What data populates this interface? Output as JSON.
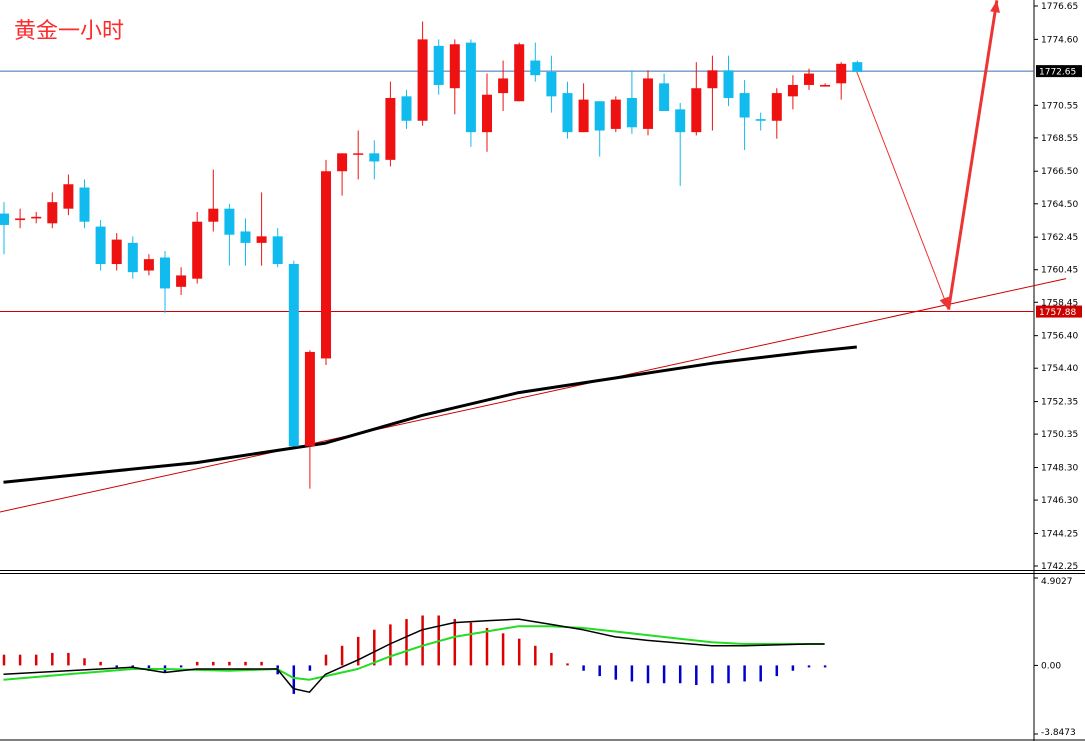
{
  "title": "黄金一小时",
  "colors": {
    "bull": "#ee1111",
    "bear": "#11bbee",
    "ma": "#000000",
    "trendline": "#cc0000",
    "forecast": "#ee3333",
    "price_line_current": "#3b6fb5",
    "price_line_support": "#cc0000",
    "macd_pos": "#dd0000",
    "macd_neg": "#0000cc",
    "macd_line": "#000000",
    "signal_line": "#22dd22"
  },
  "chart_data": [
    {
      "type": "candlestick",
      "title": "",
      "ylim": [
        1742.25,
        1776.65
      ],
      "price_ticks": [
        "1776.65",
        "1774.60",
        "1772.65",
        "1770.55",
        "1768.55",
        "1766.50",
        "1764.50",
        "1762.45",
        "1760.45",
        "1758.45",
        "1757.88",
        "1756.40",
        "1754.40",
        "1752.35",
        "1750.35",
        "1748.30",
        "1746.30",
        "1744.25",
        "1742.25"
      ],
      "current_price": "1772.65",
      "support_price": "1757.88",
      "candles": [
        [
          1763.9,
          1764.6,
          1761.4,
          1763.2
        ],
        [
          1763.5,
          1764.2,
          1763.0,
          1763.6
        ],
        [
          1763.6,
          1764.0,
          1763.3,
          1763.7
        ],
        [
          1763.3,
          1765.2,
          1763.0,
          1764.6
        ],
        [
          1764.2,
          1766.3,
          1763.8,
          1765.7
        ],
        [
          1765.5,
          1766.0,
          1763.0,
          1763.4
        ],
        [
          1763.1,
          1763.5,
          1760.4,
          1760.8
        ],
        [
          1760.8,
          1762.7,
          1760.4,
          1762.3
        ],
        [
          1762.1,
          1762.5,
          1759.9,
          1760.3
        ],
        [
          1760.4,
          1761.4,
          1760.1,
          1761.1
        ],
        [
          1761.2,
          1761.6,
          1757.8,
          1759.3
        ],
        [
          1759.4,
          1760.6,
          1758.9,
          1760.1
        ],
        [
          1759.9,
          1764.0,
          1759.6,
          1763.4
        ],
        [
          1763.4,
          1766.6,
          1762.8,
          1764.2
        ],
        [
          1764.2,
          1764.5,
          1760.7,
          1762.6
        ],
        [
          1762.8,
          1763.6,
          1760.7,
          1762.1
        ],
        [
          1762.1,
          1765.2,
          1760.7,
          1762.5
        ],
        [
          1762.5,
          1763.0,
          1760.6,
          1760.8
        ],
        [
          1760.8,
          1761.0,
          1749.6,
          1749.6
        ],
        [
          1749.6,
          1755.5,
          1747.0,
          1755.4
        ],
        [
          1755.0,
          1767.2,
          1754.6,
          1766.5
        ],
        [
          1766.5,
          1767.6,
          1765.0,
          1767.6
        ],
        [
          1767.6,
          1769.0,
          1766.0,
          1767.6
        ],
        [
          1767.6,
          1768.4,
          1766.0,
          1767.1
        ],
        [
          1767.2,
          1772.0,
          1766.8,
          1771.0
        ],
        [
          1771.1,
          1771.5,
          1769.1,
          1769.6
        ],
        [
          1769.6,
          1775.7,
          1769.3,
          1774.6
        ],
        [
          1774.2,
          1774.6,
          1771.2,
          1771.8
        ],
        [
          1771.6,
          1774.6,
          1770.0,
          1774.3
        ],
        [
          1774.4,
          1774.6,
          1768.0,
          1768.9
        ],
        [
          1768.9,
          1772.5,
          1767.7,
          1771.2
        ],
        [
          1771.3,
          1773.3,
          1770.2,
          1772.2
        ],
        [
          1770.8,
          1774.4,
          1770.8,
          1774.3
        ],
        [
          1773.3,
          1774.4,
          1772.0,
          1772.4
        ],
        [
          1772.6,
          1773.6,
          1770.1,
          1771.1
        ],
        [
          1771.3,
          1772.0,
          1768.5,
          1768.9
        ],
        [
          1768.9,
          1771.9,
          1768.9,
          1770.9
        ],
        [
          1770.8,
          1770.8,
          1767.4,
          1769.0
        ],
        [
          1769.1,
          1771.1,
          1768.9,
          1770.9
        ],
        [
          1771.0,
          1772.7,
          1768.8,
          1769.2
        ],
        [
          1769.1,
          1772.7,
          1768.7,
          1772.2
        ],
        [
          1771.9,
          1772.5,
          1770.2,
          1770.2
        ],
        [
          1770.3,
          1770.7,
          1765.6,
          1768.9
        ],
        [
          1768.9,
          1773.2,
          1768.7,
          1771.6
        ],
        [
          1771.6,
          1773.6,
          1769.0,
          1772.7
        ],
        [
          1772.7,
          1773.6,
          1770.5,
          1771.0
        ],
        [
          1771.3,
          1772.1,
          1767.8,
          1769.8
        ],
        [
          1769.7,
          1770.1,
          1769.0,
          1769.6
        ],
        [
          1769.6,
          1771.6,
          1768.5,
          1771.3
        ],
        [
          1771.1,
          1772.4,
          1770.3,
          1771.8
        ],
        [
          1771.8,
          1772.8,
          1771.5,
          1772.5
        ],
        [
          1771.7,
          1771.9,
          1771.7,
          1771.8
        ],
        [
          1771.9,
          1773.2,
          1770.9,
          1773.1
        ],
        [
          1773.2,
          1773.3,
          1772.6,
          1772.6
        ]
      ],
      "ma": [
        [
          0,
          1747.4
        ],
        [
          6,
          1748.0
        ],
        [
          12,
          1748.6
        ],
        [
          18,
          1749.5
        ],
        [
          20,
          1749.8
        ],
        [
          26,
          1751.5
        ],
        [
          32,
          1752.9
        ],
        [
          38,
          1753.8
        ],
        [
          44,
          1754.7
        ],
        [
          50,
          1755.4
        ],
        [
          53,
          1755.7
        ]
      ],
      "trendline": [
        [
          -1,
          1745.4
        ],
        [
          66,
          1759.9
        ]
      ],
      "forecast": [
        [
          53,
          1772.6
        ],
        [
          58.7,
          1758.0
        ],
        [
          61.7,
          1777.0
        ]
      ]
    },
    {
      "type": "bar",
      "title": "",
      "ylim": [
        -3.8473,
        4.9027
      ],
      "ticks": [
        "4.9027",
        "0.00",
        "-3.8473"
      ],
      "histogram": [
        0.6,
        0.6,
        0.6,
        0.7,
        0.7,
        0.4,
        0.2,
        -0.1,
        -0.1,
        -0.3,
        -0.4,
        -0.1,
        0.2,
        0.2,
        0.2,
        0.2,
        0.2,
        -0.5,
        -1.6,
        -0.3,
        0.6,
        1.1,
        1.6,
        2.0,
        2.3,
        2.6,
        2.8,
        2.8,
        2.6,
        2.4,
        2.1,
        1.8,
        1.5,
        1.1,
        0.7,
        0.1,
        -0.3,
        -0.6,
        -0.8,
        -0.9,
        -1.0,
        -1.0,
        -1.0,
        -1.1,
        -1.0,
        -1.0,
        -0.9,
        -0.9,
        -0.6,
        -0.3,
        -0.1,
        -0.1
      ],
      "macd_line": [
        [
          0,
          -0.5
        ],
        [
          4,
          -0.3
        ],
        [
          8,
          -0.1
        ],
        [
          10,
          -0.4
        ],
        [
          12,
          -0.2
        ],
        [
          17,
          -0.2
        ],
        [
          18,
          -1.3
        ],
        [
          19,
          -1.5
        ],
        [
          20,
          -0.5
        ],
        [
          22,
          0.3
        ],
        [
          24,
          1.2
        ],
        [
          26,
          2.0
        ],
        [
          28,
          2.4
        ],
        [
          30,
          2.5
        ],
        [
          32,
          2.6
        ],
        [
          34,
          2.3
        ],
        [
          36,
          2.0
        ],
        [
          38,
          1.6
        ],
        [
          40,
          1.4
        ],
        [
          44,
          1.1
        ],
        [
          46,
          1.1
        ],
        [
          50,
          1.2
        ],
        [
          51,
          1.2
        ]
      ],
      "signal_line": [
        [
          0,
          -0.8
        ],
        [
          4,
          -0.5
        ],
        [
          8,
          -0.2
        ],
        [
          10,
          -0.2
        ],
        [
          14,
          -0.3
        ],
        [
          17,
          -0.2
        ],
        [
          18,
          -0.7
        ],
        [
          19,
          -0.8
        ],
        [
          20,
          -0.6
        ],
        [
          22,
          -0.2
        ],
        [
          24,
          0.5
        ],
        [
          26,
          1.1
        ],
        [
          28,
          1.6
        ],
        [
          30,
          1.9
        ],
        [
          32,
          2.2
        ],
        [
          34,
          2.2
        ],
        [
          36,
          2.1
        ],
        [
          38,
          1.9
        ],
        [
          40,
          1.7
        ],
        [
          42,
          1.5
        ],
        [
          44,
          1.3
        ],
        [
          46,
          1.2
        ],
        [
          51,
          1.2
        ]
      ]
    }
  ]
}
